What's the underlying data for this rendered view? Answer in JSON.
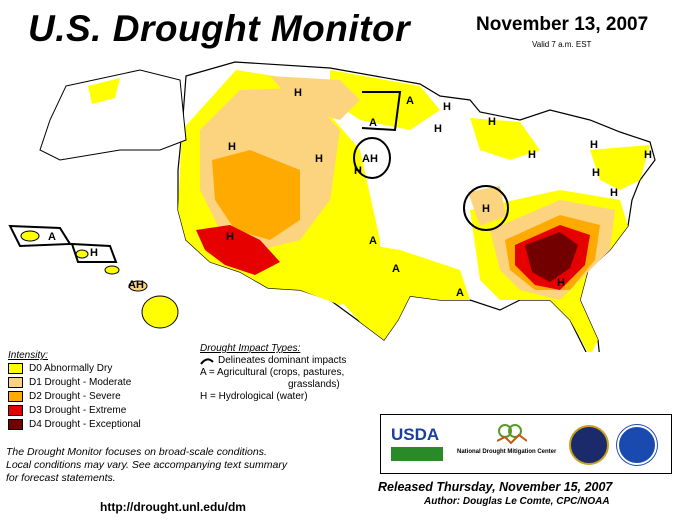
{
  "title": "U.S. Drought Monitor",
  "date": "November 13, 2007",
  "valid": "Valid 7 a.m. EST",
  "legend": {
    "title": "Intensity:",
    "items": [
      {
        "label": "D0 Abnormally Dry",
        "color": "#ffff00"
      },
      {
        "label": "D1 Drought - Moderate",
        "color": "#fcd37f"
      },
      {
        "label": "D2 Drought - Severe",
        "color": "#ffaa00"
      },
      {
        "label": "D3 Drought - Extreme",
        "color": "#e60000"
      },
      {
        "label": "D4 Drought - Exceptional",
        "color": "#730000"
      }
    ]
  },
  "impact": {
    "title": "Drought Impact Types:",
    "line1": "Delineates dominant impacts",
    "line2": "A = Agricultural (crops, pastures,",
    "line3": "grasslands)",
    "line4": "H = Hydrological (water)"
  },
  "map_labels": {
    "h1": "H",
    "a1": "A",
    "h2": "H",
    "a2": "A",
    "h3": "H",
    "ah1": "AH",
    "h4": "H",
    "h5": "H",
    "h6": "H",
    "h7": "H",
    "h8": "H",
    "h9": "H",
    "h10": "H",
    "h11": "H",
    "h12": "H",
    "h13": "H",
    "h14": "H",
    "a3": "A",
    "a4": "A",
    "a5": "A",
    "h15": "H",
    "a6": "A",
    "h16": "H",
    "ah2": "AH"
  },
  "note": {
    "line1": "The Drought Monitor focuses on broad-scale conditions.",
    "line2": "Local conditions may vary.  See accompanying text summary",
    "line3": "for forecast statements."
  },
  "url": "http://drought.unl.edu/dm",
  "released": "Released Thursday, November 15, 2007",
  "author": "Author: Douglas Le Comte, CPC/NOAA",
  "logos": {
    "usda": "USDA",
    "ndmc_line1": "National",
    "ndmc_line2": "Drought Mitigation Center"
  }
}
